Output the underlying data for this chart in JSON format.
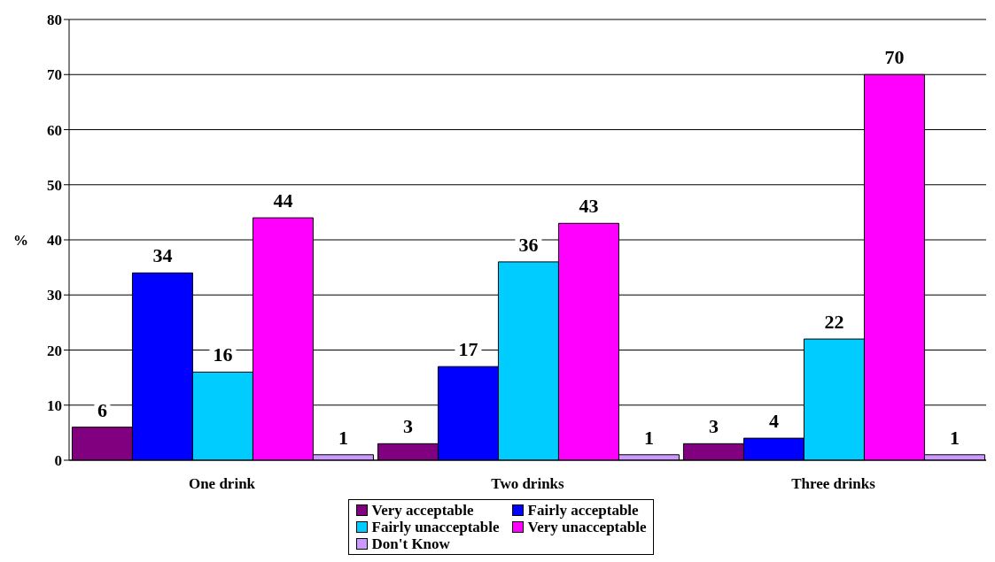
{
  "chart_data": {
    "type": "bar",
    "ylabel": "%",
    "categories": [
      "One drink",
      "Two drinks",
      "Three drinks"
    ],
    "series": [
      {
        "name": "Very acceptable",
        "color": "#800080",
        "values": [
          6,
          3,
          3
        ]
      },
      {
        "name": "Fairly acceptable",
        "color": "#0000ff",
        "values": [
          34,
          17,
          4
        ]
      },
      {
        "name": "Fairly unacceptable",
        "color": "#00ccff",
        "values": [
          16,
          36,
          22
        ]
      },
      {
        "name": "Very unacceptable",
        "color": "#ff00ff",
        "values": [
          44,
          43,
          70
        ]
      },
      {
        "name": "Don't Know",
        "color": "#cc99ff",
        "values": [
          1,
          1,
          1
        ]
      }
    ],
    "ylim": [
      0,
      80
    ],
    "yticks": [
      0,
      10,
      20,
      30,
      40,
      50,
      60,
      70,
      80
    ],
    "grid": "y",
    "legend": "bottom",
    "data_labels": true
  }
}
